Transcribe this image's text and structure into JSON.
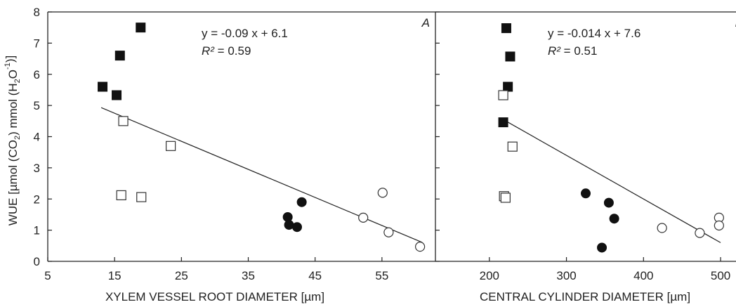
{
  "chart_data": [
    {
      "type": "scatter",
      "panel_label": "A",
      "title": "",
      "xlabel": "XYLEM VESSEL ROOT DIAMETER [µm]",
      "ylabel": "WUE [µmol (CO2) mmol (H2O-1)]",
      "xlim": [
        5,
        63
      ],
      "ylim": [
        0,
        8
      ],
      "xticks": [
        5,
        15,
        25,
        35,
        45,
        55
      ],
      "yticks": [
        0,
        1,
        2,
        3,
        4,
        5,
        6,
        7,
        8
      ],
      "regression": {
        "slope": -0.09,
        "intercept": 6.1,
        "x_range": [
          13,
          61
        ]
      },
      "equation": "y = -0.09 x + 6.1",
      "r2_label": "R²",
      "r2_value": "= 0.59",
      "series": [
        {
          "marker": "filled-square",
          "points": [
            [
              13.2,
              5.6
            ],
            [
              15.3,
              5.33
            ],
            [
              15.8,
              6.6
            ],
            [
              18.9,
              7.5
            ]
          ]
        },
        {
          "marker": "open-square",
          "points": [
            [
              16.3,
              4.5
            ],
            [
              23.4,
              3.7
            ],
            [
              16.0,
              2.12
            ],
            [
              19.0,
              2.06
            ]
          ]
        },
        {
          "marker": "filled-circle",
          "points": [
            [
              40.9,
              1.42
            ],
            [
              41.1,
              1.17
            ],
            [
              42.3,
              1.1
            ],
            [
              43.0,
              1.9
            ]
          ]
        },
        {
          "marker": "open-circle",
          "points": [
            [
              52.2,
              1.4
            ],
            [
              55.1,
              2.2
            ],
            [
              56.0,
              0.93
            ],
            [
              60.7,
              0.47
            ]
          ]
        }
      ]
    },
    {
      "type": "scatter",
      "panel_label": "B",
      "title": "",
      "xlabel": "CENTRAL CYLINDER DIAMETER [µm]",
      "ylabel": "",
      "xlim": [
        130,
        520
      ],
      "ylim": [
        0,
        8
      ],
      "xticks": [
        200,
        300,
        400,
        500
      ],
      "yticks": [],
      "regression": {
        "slope": -0.014,
        "intercept": 7.6,
        "x_range": [
          215,
          500
        ]
      },
      "equation": "y = -0.014 x + 7.6",
      "r2_label": "R²",
      "r2_value": "= 0.51",
      "series": [
        {
          "marker": "filled-square",
          "points": [
            [
              222,
              7.48
            ],
            [
              227,
              6.57
            ],
            [
              224,
              5.6
            ],
            [
              218,
              4.46
            ]
          ]
        },
        {
          "marker": "open-square",
          "points": [
            [
              218,
              5.33
            ],
            [
              230,
              3.68
            ],
            [
              219,
              2.09
            ],
            [
              221,
              2.04
            ]
          ]
        },
        {
          "marker": "filled-circle",
          "points": [
            [
              325,
              2.18
            ],
            [
              355,
              1.88
            ],
            [
              362,
              1.37
            ],
            [
              346,
              0.44
            ]
          ]
        },
        {
          "marker": "open-circle",
          "points": [
            [
              424,
              1.07
            ],
            [
              473,
              0.91
            ],
            [
              498,
              1.4
            ],
            [
              498,
              1.15
            ]
          ]
        }
      ]
    }
  ]
}
